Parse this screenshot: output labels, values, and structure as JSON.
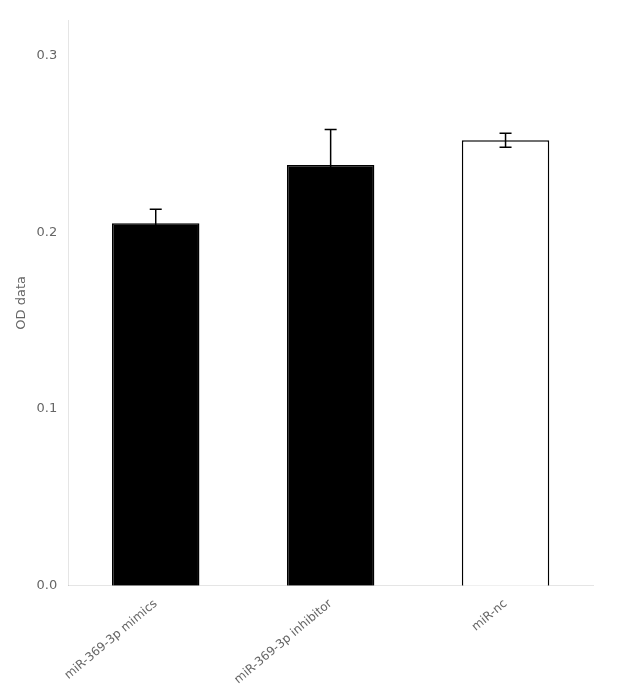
{
  "chart_data": {
    "type": "bar",
    "categories": [
      "miR-369-3p mimics",
      "miR-369-3p inhibitor",
      "miR-nc"
    ],
    "values": [
      0.205,
      0.238,
      0.252
    ],
    "errors": [
      0.008,
      0.02,
      0.004
    ],
    "colors": [
      "#000000",
      "#000000",
      "#ffffff"
    ],
    "ylabel": "OD data",
    "ylim": [
      0.0,
      0.32
    ],
    "yticks": [
      {
        "value": 0.0,
        "label": "0.0"
      },
      0.1,
      0.2,
      0.3
    ],
    "grid": false
  }
}
